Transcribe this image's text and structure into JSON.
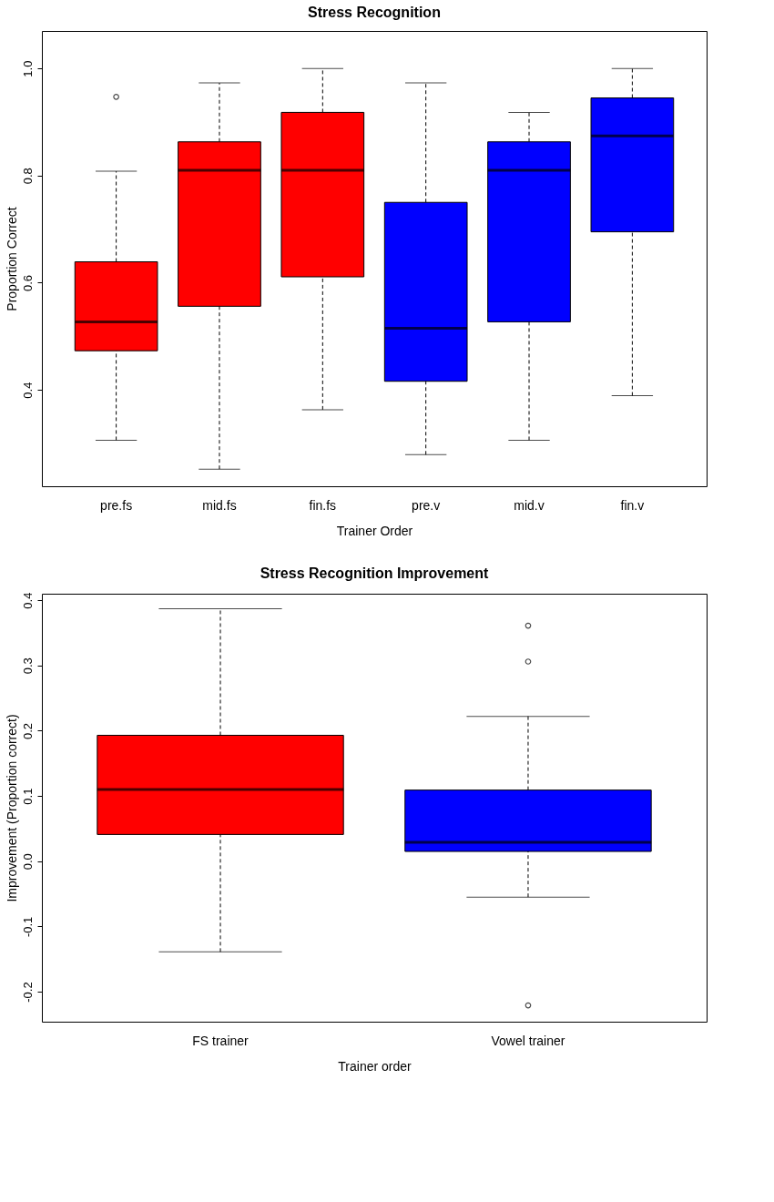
{
  "chart_data": [
    {
      "type": "box",
      "title": "Stress Recognition",
      "xlabel": "Trainer Order",
      "ylabel": "Proportion Correct",
      "categories": [
        "pre.fs",
        "mid.fs",
        "fin.fs",
        "pre.v",
        "mid.v",
        "fin.v"
      ],
      "colors": [
        "#ff0000",
        "#ff0000",
        "#ff0000",
        "#0000ff",
        "#0000ff",
        "#0000ff"
      ],
      "boxes": [
        {
          "low": 0.306,
          "q1": 0.473,
          "median": 0.527,
          "q3": 0.639,
          "high": 0.808,
          "outliers": [
            0.947
          ]
        },
        {
          "low": 0.252,
          "q1": 0.556,
          "median": 0.81,
          "q3": 0.863,
          "high": 0.973
        },
        {
          "low": 0.363,
          "q1": 0.611,
          "median": 0.81,
          "q3": 0.918,
          "high": 1.0
        },
        {
          "low": 0.279,
          "q1": 0.416,
          "median": 0.515,
          "q3": 0.75,
          "high": 0.973
        },
        {
          "low": 0.306,
          "q1": 0.527,
          "median": 0.81,
          "q3": 0.863,
          "high": 0.918
        },
        {
          "low": 0.389,
          "q1": 0.695,
          "median": 0.874,
          "q3": 0.945,
          "high": 1.0
        }
      ],
      "ylim": [
        0.22,
        1.07
      ],
      "yticks": [
        {
          "value": 0.4,
          "label": "0.4"
        },
        {
          "value": 0.6,
          "label": "0.6"
        },
        {
          "value": 0.8,
          "label": "0.8"
        },
        {
          "value": 1.0,
          "label": "1.0"
        }
      ],
      "grid": false
    },
    {
      "type": "box",
      "title": "Stress Recognition Improvement",
      "xlabel": "Trainer order",
      "ylabel": "Improvement (Proportion correct)",
      "categories": [
        "FS trainer",
        "Vowel trainer"
      ],
      "colors": [
        "#ff0000",
        "#0000ff"
      ],
      "boxes": [
        {
          "low": -0.139,
          "q1": 0.041,
          "median": 0.11,
          "q3": 0.193,
          "high": 0.387
        },
        {
          "low": -0.055,
          "q1": 0.015,
          "median": 0.029,
          "q3": 0.109,
          "high": 0.222,
          "outliers": [
            0.361,
            0.306,
            -0.221
          ]
        }
      ],
      "ylim": [
        -0.246,
        0.41
      ],
      "yticks": [
        {
          "value": -0.2,
          "label": "-0.2"
        },
        {
          "value": -0.1,
          "label": "-0.1"
        },
        {
          "value": 0.0,
          "label": "0.0"
        },
        {
          "value": 0.1,
          "label": "0.1"
        },
        {
          "value": 0.2,
          "label": "0.2"
        },
        {
          "value": 0.3,
          "label": "0.3"
        },
        {
          "value": 0.4,
          "label": "0.4"
        }
      ],
      "grid": false
    }
  ]
}
